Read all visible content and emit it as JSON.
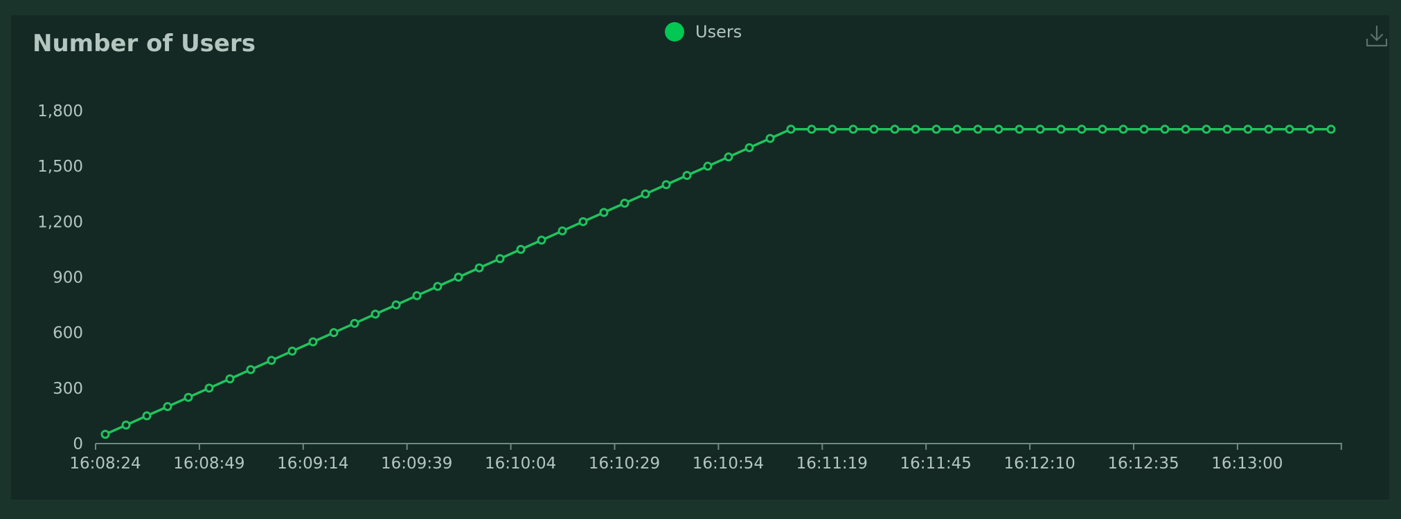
{
  "header": {
    "title": "Number of Users",
    "download_icon": "download-icon"
  },
  "legend": {
    "label": "Users",
    "color": "#00c853"
  },
  "colors": {
    "background": "#1a342b",
    "panel": "#142923",
    "line": "#1fc45f",
    "axis": "#6f8a80",
    "text": "#b4c6bf"
  },
  "chart_data": {
    "type": "line",
    "title": "Number of Users",
    "xlabel": "",
    "ylabel": "",
    "grid": false,
    "legend_position": "top-center",
    "x_ticks": [
      "16:08:24",
      "16:08:49",
      "16:09:14",
      "16:09:39",
      "16:10:04",
      "16:10:29",
      "16:10:54",
      "16:11:19",
      "16:11:45",
      "16:12:10",
      "16:12:35",
      "16:13:00"
    ],
    "y_ticks": [
      "0",
      "300",
      "600",
      "900",
      "1,200",
      "1,500",
      "1,800"
    ],
    "ylim": [
      0,
      1800
    ],
    "series": [
      {
        "name": "Users",
        "values": [
          50,
          100,
          150,
          200,
          250,
          300,
          350,
          400,
          450,
          500,
          550,
          600,
          650,
          700,
          750,
          800,
          850,
          900,
          950,
          1000,
          1050,
          1100,
          1150,
          1200,
          1250,
          1300,
          1350,
          1400,
          1450,
          1500,
          1550,
          1600,
          1650,
          1700,
          1700,
          1700,
          1700,
          1700,
          1700,
          1700,
          1700,
          1700,
          1700,
          1700,
          1700,
          1700,
          1700,
          1700,
          1700,
          1700,
          1700,
          1700,
          1700,
          1700,
          1700,
          1700,
          1700,
          1700,
          1700,
          1700
        ]
      }
    ]
  }
}
